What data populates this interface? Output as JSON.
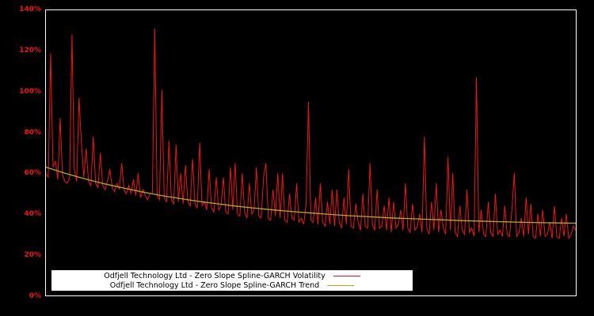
{
  "chart": {
    "background": "#000000",
    "plot_border_color": "#ffffff",
    "y_axis": {
      "label_color": "#ee1515",
      "ticks": [
        {
          "label": "0%",
          "value": 0
        },
        {
          "label": "20%",
          "value": 20
        },
        {
          "label": "40%",
          "value": 40
        },
        {
          "label": "60%",
          "value": 60
        },
        {
          "label": "80%",
          "value": 80
        },
        {
          "label": "100%",
          "value": 100
        },
        {
          "label": "120%",
          "value": 120
        },
        {
          "label": "140%",
          "value": 140
        }
      ]
    },
    "legend": {
      "background": "#ffffff",
      "text_color": "#000000",
      "entries": [
        {
          "label": "Odfjell Technology Ltd - Zero Slope Spline-GARCH Volatility",
          "color": "#f01515"
        },
        {
          "label": "Odfjell Technology Ltd - Zero Slope Spline-GARCH Trend",
          "color": "#b8ab20"
        }
      ]
    }
  },
  "chart_data": {
    "type": "line",
    "title": "",
    "xlabel": "",
    "ylabel": "",
    "ylim": [
      0,
      140
    ],
    "y_tick_labels": [
      "0%",
      "20%",
      "40%",
      "60%",
      "80%",
      "100%",
      "120%",
      "140%"
    ],
    "grid": false,
    "legend_position": "bottom-left-inside",
    "series": [
      {
        "name": "Odfjell Technology Ltd - Zero Slope Spline-GARCH Volatility",
        "color": "#f01515",
        "unit": "percent",
        "values": [
          60,
          58,
          119,
          63,
          66,
          57,
          87,
          59,
          56,
          55,
          58,
          128,
          62,
          56,
          97,
          75,
          58,
          72,
          56,
          54,
          78,
          55,
          53,
          70,
          54,
          52,
          56,
          62,
          53,
          51,
          55,
          52,
          65,
          52,
          50,
          54,
          50,
          57,
          49,
          60,
          48,
          52,
          49,
          47,
          50,
          50,
          131,
          49,
          47,
          101,
          48,
          46,
          76,
          47,
          45,
          74,
          46,
          60,
          45,
          64,
          46,
          44,
          67,
          45,
          43,
          75,
          44,
          46,
          42,
          62,
          43,
          41,
          58,
          42,
          44,
          58,
          41,
          40,
          63,
          42,
          65,
          40,
          39,
          60,
          41,
          38,
          55,
          40,
          42,
          63,
          39,
          38,
          58,
          65,
          38,
          37,
          52,
          39,
          60,
          38,
          60,
          37,
          36,
          50,
          38,
          37,
          55,
          36,
          38,
          35,
          45,
          95,
          37,
          36,
          48,
          35,
          55,
          36,
          34,
          46,
          35,
          52,
          34,
          52,
          36,
          33,
          48,
          35,
          62,
          34,
          33,
          45,
          36,
          32,
          50,
          34,
          33,
          65,
          35,
          32,
          52,
          33,
          34,
          44,
          32,
          48,
          31,
          46,
          33,
          35,
          42,
          32,
          55,
          33,
          31,
          45,
          32,
          34,
          40,
          31,
          78,
          33,
          30,
          46,
          32,
          55,
          31,
          42,
          33,
          30,
          68,
          32,
          60,
          31,
          29,
          44,
          32,
          30,
          52,
          31,
          33,
          29,
          107,
          31,
          42,
          30,
          29,
          46,
          31,
          29,
          50,
          30,
          32,
          29,
          44,
          30,
          29,
          42,
          60,
          29,
          31,
          38,
          29,
          48,
          30,
          45,
          29,
          28,
          40,
          29,
          42,
          29,
          30,
          36,
          28,
          44,
          29,
          28,
          38,
          29,
          40,
          28,
          30,
          34,
          32
        ]
      },
      {
        "name": "Odfjell Technology Ltd - Zero Slope Spline-GARCH Trend",
        "color": "#b8ab20",
        "unit": "percent",
        "x_step": 8,
        "values": [
          63.0,
          60.0,
          57.4,
          55.0,
          52.9,
          51.0,
          49.2,
          47.7,
          46.3,
          45.1,
          43.9,
          42.9,
          42.0,
          41.2,
          40.5,
          39.8,
          39.2,
          38.7,
          38.2,
          37.8,
          37.4,
          37.1,
          36.7,
          36.5,
          36.2,
          36.0,
          35.8,
          35.6,
          35.5
        ]
      }
    ]
  }
}
